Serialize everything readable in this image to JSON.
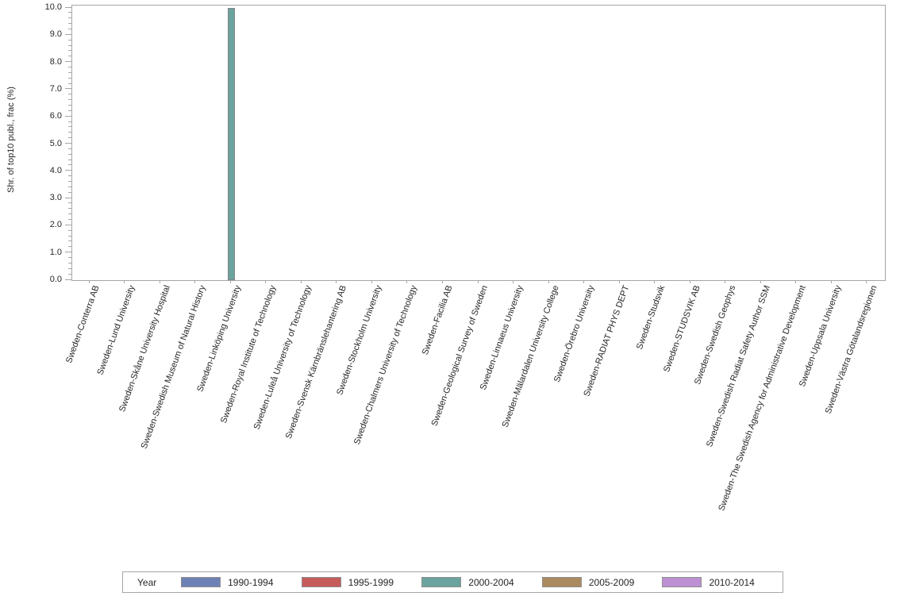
{
  "chart_data": {
    "type": "bar",
    "title": "",
    "xlabel": "",
    "ylabel": "Shr. of top10 publ., frac (%)",
    "ylim": [
      0,
      10
    ],
    "y_major_tick_labels": [
      "0.0",
      "1.0",
      "2.0",
      "3.0",
      "4.0",
      "5.0",
      "6.0",
      "7.0",
      "8.0",
      "9.0",
      "10.0"
    ],
    "y_minor_tick_step": 0.2,
    "grid": false,
    "categories": [
      "Sweden-Conterra AB",
      "Sweden-Lund University",
      "Sweden-Skåne University Hospital",
      "Sweden-Swedish Museum of Natural History",
      "Sweden-Linköping University",
      "Sweden-Royal Institute of Technology",
      "Sweden-Luleå University of Technology",
      "Sweden-Svensk Kärnbränslehantering AB",
      "Sweden-Stockholm University",
      "Sweden-Chalmers University of Technology",
      "Sweden-Facilia AB",
      "Sweden-Geological Survey of Sweden",
      "Sweden-Linnaeus University",
      "Sweden-Mälardalen University College",
      "Sweden-Örebro University",
      "Sweden-RADIAT PHYS DEPT",
      "Sweden-Studsvik",
      "Sweden-STUDSVIK AB",
      "Sweden-Swedish Geophys",
      "Sweden-Swedish Radiat Safety Author SSM",
      "Sweden-The Swedish Agency for Administrative Development",
      "Sweden-Uppsala University",
      "Sweden-Västra Götalandsregionen"
    ],
    "series": [
      {
        "name": "1990-1994",
        "color": "#6D81B4",
        "values": [
          null,
          null,
          null,
          null,
          null,
          null,
          null,
          null,
          null,
          null,
          null,
          null,
          null,
          null,
          null,
          null,
          null,
          null,
          null,
          null,
          null,
          null,
          null
        ]
      },
      {
        "name": "1995-1999",
        "color": "#C65B5B",
        "values": [
          null,
          null,
          null,
          null,
          null,
          null,
          null,
          null,
          null,
          null,
          null,
          null,
          null,
          null,
          null,
          null,
          null,
          null,
          null,
          null,
          null,
          null,
          null
        ]
      },
      {
        "name": "2000-2004",
        "color": "#6BA49E",
        "values": [
          null,
          null,
          null,
          null,
          10.0,
          null,
          null,
          null,
          null,
          null,
          null,
          null,
          null,
          null,
          null,
          null,
          null,
          null,
          null,
          null,
          null,
          null,
          null
        ]
      },
      {
        "name": "2005-2009",
        "color": "#AA8A5F",
        "values": [
          null,
          null,
          null,
          null,
          null,
          null,
          null,
          null,
          null,
          null,
          null,
          null,
          null,
          null,
          null,
          null,
          null,
          null,
          null,
          null,
          null,
          null,
          null
        ]
      },
      {
        "name": "2010-2014",
        "color": "#BC90D2",
        "values": [
          null,
          null,
          null,
          null,
          null,
          null,
          null,
          null,
          null,
          null,
          null,
          null,
          null,
          null,
          null,
          null,
          null,
          null,
          null,
          null,
          null,
          null,
          null
        ]
      }
    ],
    "legend": {
      "title": "Year",
      "position": "bottom"
    }
  }
}
